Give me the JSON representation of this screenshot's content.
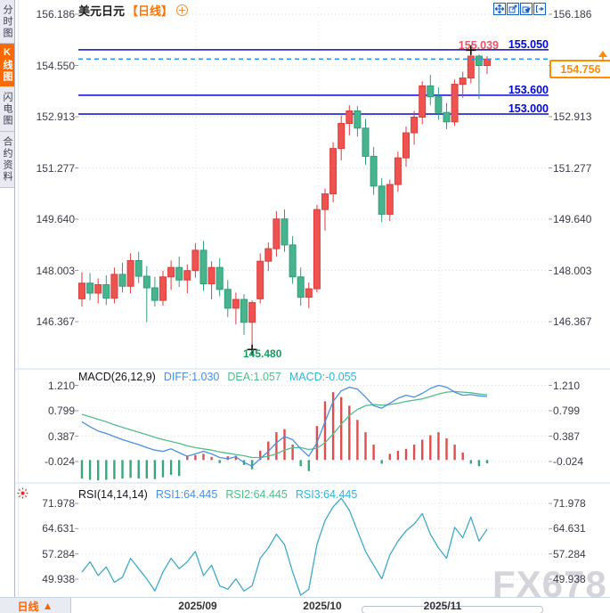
{
  "sidebar": {
    "tabs": [
      {
        "label": "分时图",
        "active": false
      },
      {
        "label": "K线图",
        "active": true
      },
      {
        "label": "闪电图",
        "active": false
      },
      {
        "label": "合约资料",
        "active": false
      }
    ]
  },
  "header": {
    "symbol": "美元日元",
    "period": "【日线】",
    "add_icon": "circle-plus-icon"
  },
  "toolbar": {
    "icons": [
      "move-icon",
      "zoom-reset-icon",
      "zoom-in-icon",
      "exit-icon"
    ]
  },
  "bottom": {
    "tab_label": "日线",
    "tab_arrow": "▲"
  },
  "watermark": "FX678",
  "chart_data": {
    "type": "candlestick",
    "title": "美元日元 日线",
    "x_labels": [
      "2025/09",
      "2025/10",
      "2025/11"
    ],
    "main": {
      "yticks_left": [
        "156.186",
        "154.550",
        "152.913",
        "151.277",
        "149.640",
        "148.003",
        "146.367"
      ],
      "yticks_right": [
        "156.186",
        "152.913",
        "151.277",
        "149.640",
        "148.003",
        "146.367"
      ],
      "ylim": [
        145.06,
        156.41
      ],
      "hlines": [
        {
          "value": 155.05,
          "label": "155.050"
        },
        {
          "value": 153.6,
          "label": "153.600"
        },
        {
          "value": 153.0,
          "label": "153.000"
        }
      ],
      "current_price": {
        "value": 154.756,
        "label": "154.756"
      },
      "high_annotation": {
        "value": 155.039,
        "label": "155.039",
        "candle_index": 48
      },
      "low_annotation": {
        "value": 145.48,
        "label": "145.480",
        "candle_index": 21
      },
      "candles": [
        [
          147.1,
          147.95,
          146.85,
          147.6
        ],
        [
          147.6,
          147.92,
          147.05,
          147.28
        ],
        [
          147.28,
          147.75,
          146.95,
          147.55
        ],
        [
          147.55,
          147.85,
          146.9,
          147.12
        ],
        [
          147.12,
          148.1,
          146.95,
          147.88
        ],
        [
          147.88,
          148.25,
          147.3,
          147.5
        ],
        [
          147.5,
          148.55,
          147.28,
          148.32
        ],
        [
          148.32,
          148.6,
          147.6,
          147.82
        ],
        [
          147.82,
          148.15,
          146.35,
          147.45
        ],
        [
          147.45,
          147.8,
          146.85,
          147.05
        ],
        [
          147.05,
          148.0,
          146.88,
          147.8
        ],
        [
          147.8,
          148.32,
          147.38,
          148.1
        ],
        [
          148.1,
          148.45,
          147.48,
          147.7
        ],
        [
          147.7,
          148.2,
          147.28,
          148.0
        ],
        [
          148.0,
          148.88,
          147.78,
          148.65
        ],
        [
          148.65,
          148.95,
          147.35,
          147.58
        ],
        [
          147.58,
          148.3,
          147.08,
          148.1
        ],
        [
          148.1,
          148.4,
          147.18,
          147.4
        ],
        [
          147.4,
          147.7,
          146.52,
          146.8
        ],
        [
          146.8,
          147.3,
          146.28,
          147.08
        ],
        [
          147.08,
          147.25,
          145.95,
          146.35
        ],
        [
          146.35,
          147.05,
          145.48,
          146.98
        ],
        [
          147.1,
          148.55,
          146.95,
          148.3
        ],
        [
          148.3,
          148.9,
          147.98,
          148.7
        ],
        [
          148.7,
          149.9,
          148.45,
          149.65
        ],
        [
          149.65,
          149.95,
          148.6,
          148.82
        ],
        [
          148.82,
          149.1,
          147.58,
          147.8
        ],
        [
          147.8,
          148.1,
          146.88,
          147.15
        ],
        [
          147.15,
          147.62,
          146.8,
          147.42
        ],
        [
          147.42,
          150.1,
          147.3,
          149.95
        ],
        [
          149.95,
          150.62,
          149.28,
          150.45
        ],
        [
          150.45,
          152.1,
          150.18,
          151.9
        ],
        [
          151.9,
          152.95,
          151.52,
          152.7
        ],
        [
          152.7,
          153.28,
          152.32,
          153.1
        ],
        [
          153.1,
          153.25,
          152.28,
          152.55
        ],
        [
          152.55,
          152.85,
          151.38,
          151.65
        ],
        [
          151.65,
          151.95,
          150.42,
          150.7
        ],
        [
          150.7,
          150.95,
          149.55,
          149.8
        ],
        [
          149.8,
          150.9,
          149.58,
          150.75
        ],
        [
          150.75,
          151.8,
          150.52,
          151.6
        ],
        [
          151.6,
          152.6,
          151.32,
          152.4
        ],
        [
          152.4,
          153.1,
          152.02,
          152.9
        ],
        [
          152.9,
          154.05,
          152.68,
          153.9
        ],
        [
          153.9,
          154.25,
          153.28,
          153.55
        ],
        [
          153.55,
          153.85,
          152.82,
          153.05
        ],
        [
          153.05,
          153.35,
          152.52,
          152.75
        ],
        [
          152.75,
          154.1,
          152.62,
          153.95
        ],
        [
          153.95,
          154.35,
          153.52,
          154.15
        ],
        [
          154.15,
          155.039,
          153.98,
          154.85
        ],
        [
          154.85,
          154.9,
          153.48,
          154.55
        ],
        [
          154.55,
          154.85,
          154.28,
          154.756
        ]
      ]
    },
    "macd": {
      "title": "MACD(26,12,9)",
      "diff_label": "DIFF:1.030",
      "dea_label": "DEA:1.057",
      "macd_label": "MACD:-0.055",
      "yticks": [
        "1.210",
        "0.799",
        "0.387",
        "-0.024"
      ],
      "diff": [
        0.62,
        0.54,
        0.47,
        0.43,
        0.38,
        0.33,
        0.29,
        0.25,
        0.2,
        0.16,
        0.14,
        0.18,
        0.12,
        0.06,
        0.1,
        0.14,
        0.1,
        0.04,
        0.02,
        0.05,
        -0.04,
        -0.1,
        0.02,
        0.14,
        0.28,
        0.38,
        0.33,
        0.18,
        0.06,
        0.28,
        0.62,
        0.95,
        1.12,
        1.18,
        1.15,
        1.02,
        0.88,
        0.84,
        0.92,
        1.0,
        1.05,
        1.02,
        1.08,
        1.16,
        1.21,
        1.18,
        1.1,
        1.05,
        1.06,
        1.04,
        1.03
      ],
      "dea": [
        0.74,
        0.7,
        0.66,
        0.62,
        0.57,
        0.53,
        0.49,
        0.45,
        0.41,
        0.37,
        0.33,
        0.3,
        0.27,
        0.23,
        0.2,
        0.18,
        0.16,
        0.13,
        0.11,
        0.09,
        0.07,
        0.04,
        0.04,
        0.06,
        0.1,
        0.16,
        0.2,
        0.2,
        0.17,
        0.19,
        0.28,
        0.42,
        0.58,
        0.72,
        0.82,
        0.88,
        0.9,
        0.89,
        0.9,
        0.92,
        0.95,
        0.97,
        0.99,
        1.03,
        1.07,
        1.1,
        1.11,
        1.1,
        1.09,
        1.07,
        1.057
      ],
      "hist": [
        -0.3,
        -0.32,
        -0.33,
        -0.32,
        -0.31,
        -0.3,
        -0.29,
        -0.3,
        -0.3,
        -0.31,
        -0.28,
        -0.24,
        -0.26,
        0.06,
        0.08,
        0.1,
        0.05,
        -0.05,
        0.06,
        0.07,
        -0.08,
        -0.15,
        0.15,
        0.3,
        0.45,
        0.5,
        0.25,
        -0.1,
        -0.18,
        0.55,
        0.95,
        1.1,
        1.02,
        0.88,
        0.65,
        0.45,
        0.25,
        -0.06,
        0.1,
        0.15,
        0.18,
        0.25,
        0.33,
        0.4,
        0.45,
        0.35,
        0.25,
        0.12,
        -0.06,
        -0.1,
        -0.055
      ]
    },
    "rsi": {
      "title": "RSI(14,14,14)",
      "rsi1_label": "RSI1:64.445",
      "rsi2_label": "RSI2:64.445",
      "rsi3_label": "RSI3:64.445",
      "yticks": [
        "71.978",
        "64.631",
        "57.284",
        "49.938"
      ],
      "values": [
        52,
        55,
        51,
        53.5,
        49,
        50.5,
        56,
        53,
        50,
        46.5,
        52,
        56,
        53,
        55,
        58,
        51,
        54,
        48,
        47,
        50,
        46.5,
        48,
        56,
        59,
        63,
        60,
        52,
        45.2,
        47,
        60,
        67,
        71,
        73.5,
        70,
        64,
        58,
        54,
        50,
        57,
        61,
        64,
        66,
        69,
        63,
        59,
        56,
        65,
        62,
        68,
        61,
        64.445
      ]
    },
    "colors": {
      "up": "#ef5350",
      "up_border": "#dd3c3c",
      "down": "#47b48e",
      "down_border": "#2f9d78",
      "line_blue": "#0a0ad0",
      "current_dash": "#2e9be6",
      "accent_orange": "#ff8c00",
      "diff_line": "#4a8fe2",
      "dea_line": "#53bd8a",
      "hist_pos": "#dd4f4f",
      "hist_neg": "#3aa679",
      "rsi_line": "#3fa9c9",
      "high_label": "#e25568",
      "low_label": "#18995f"
    }
  }
}
